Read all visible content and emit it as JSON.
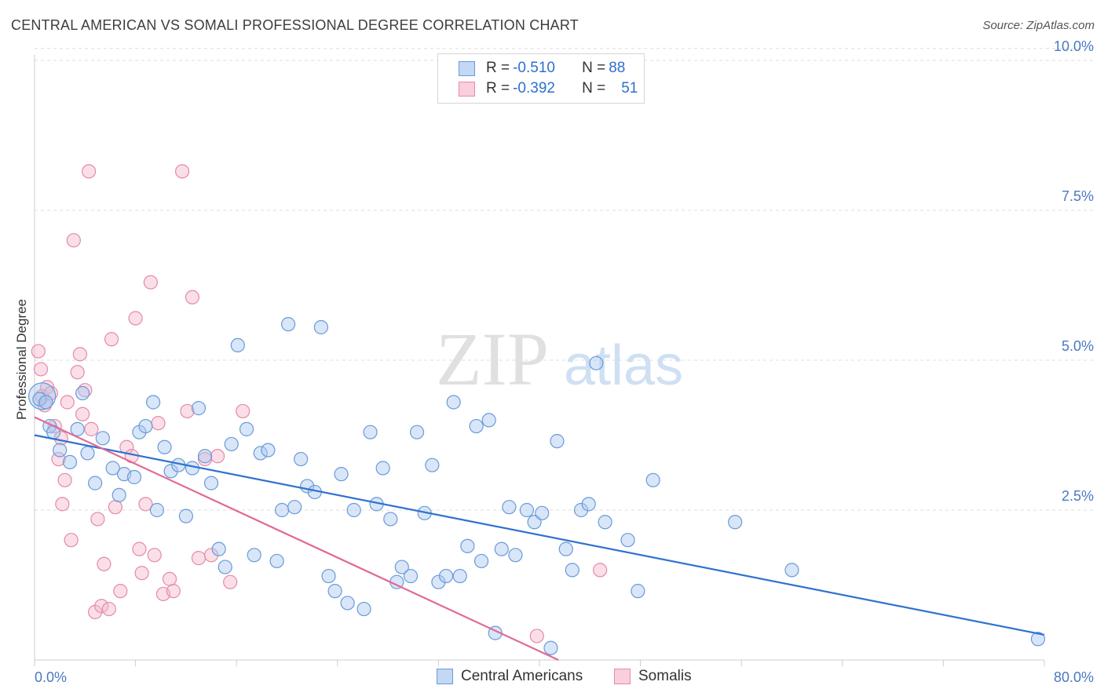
{
  "header": {
    "title": "CENTRAL AMERICAN VS SOMALI PROFESSIONAL DEGREE CORRELATION CHART",
    "source": "Source: ZipAtlas.com"
  },
  "watermark": {
    "zip": "ZIP",
    "atlas": "atlas"
  },
  "legend": {
    "rows": [
      {
        "r_label": "R = ",
        "r_value": "-0.510",
        "n_label": "N = ",
        "n_value": "88"
      },
      {
        "r_label": "R = ",
        "r_value": "-0.392",
        "n_label": "N = ",
        "n_value": "51"
      }
    ]
  },
  "colors": {
    "blue_fill": "#a9c8f0",
    "blue_stroke": "#6a9ad8",
    "blue_line": "#2f72d0",
    "pink_fill": "#f5b8cb",
    "pink_stroke": "#e58aa6",
    "pink_line": "#e06a95",
    "grid": "#dddddd",
    "axis": "#cccccc",
    "tick_text": "#4a78c2"
  },
  "chart_data": {
    "type": "scatter",
    "title": "CENTRAL AMERICAN VS SOMALI PROFESSIONAL DEGREE CORRELATION CHART",
    "xlabel": "",
    "ylabel": "Professional Degree",
    "xlim": [
      0,
      80
    ],
    "ylim": [
      0,
      10.5
    ],
    "x_tick_labels": [
      "0.0%",
      "80.0%"
    ],
    "y_ticks": [
      2.5,
      5.0,
      7.5,
      10.0
    ],
    "y_tick_labels": [
      "2.5%",
      "5.0%",
      "7.5%",
      "10.0%"
    ],
    "grid": "horizontal dashed",
    "legend_position": "top-center",
    "bottom_legend": [
      "Central Americans",
      "Somalis"
    ],
    "series": [
      {
        "name": "Central Americans",
        "color": "#a9c8f0",
        "r": -0.51,
        "n": 88,
        "trend": {
          "x0": 0,
          "y0": 3.75,
          "x1": 80,
          "y1": 0.42
        },
        "points": [
          [
            0.4,
            4.35
          ],
          [
            0.9,
            4.3
          ],
          [
            1.2,
            3.9
          ],
          [
            1.5,
            3.8
          ],
          [
            2.0,
            3.5
          ],
          [
            2.8,
            3.3
          ],
          [
            3.4,
            3.85
          ],
          [
            3.8,
            4.45
          ],
          [
            4.2,
            3.45
          ],
          [
            4.8,
            2.95
          ],
          [
            5.4,
            3.7
          ],
          [
            6.2,
            3.2
          ],
          [
            6.7,
            2.75
          ],
          [
            7.1,
            3.1
          ],
          [
            7.9,
            3.05
          ],
          [
            8.3,
            3.8
          ],
          [
            8.8,
            3.9
          ],
          [
            9.4,
            4.3
          ],
          [
            9.7,
            2.5
          ],
          [
            10.3,
            3.55
          ],
          [
            10.8,
            3.15
          ],
          [
            11.4,
            3.25
          ],
          [
            12.0,
            2.4
          ],
          [
            12.5,
            3.2
          ],
          [
            13.0,
            4.2
          ],
          [
            13.5,
            3.4
          ],
          [
            14.0,
            2.95
          ],
          [
            14.6,
            1.85
          ],
          [
            15.1,
            1.55
          ],
          [
            15.6,
            3.6
          ],
          [
            16.1,
            5.25
          ],
          [
            16.8,
            3.85
          ],
          [
            17.4,
            1.75
          ],
          [
            17.9,
            3.45
          ],
          [
            18.5,
            3.5
          ],
          [
            19.2,
            1.65
          ],
          [
            19.6,
            2.5
          ],
          [
            20.1,
            5.6
          ],
          [
            20.6,
            2.55
          ],
          [
            21.1,
            3.35
          ],
          [
            21.6,
            2.9
          ],
          [
            22.2,
            2.8
          ],
          [
            22.7,
            5.55
          ],
          [
            23.3,
            1.4
          ],
          [
            23.8,
            1.15
          ],
          [
            24.3,
            3.1
          ],
          [
            24.8,
            0.95
          ],
          [
            25.3,
            2.5
          ],
          [
            26.1,
            0.85
          ],
          [
            26.6,
            3.8
          ],
          [
            27.1,
            2.6
          ],
          [
            27.6,
            3.2
          ],
          [
            28.2,
            2.35
          ],
          [
            28.7,
            1.3
          ],
          [
            29.1,
            1.55
          ],
          [
            29.8,
            1.4
          ],
          [
            30.3,
            3.8
          ],
          [
            30.9,
            2.45
          ],
          [
            31.5,
            3.25
          ],
          [
            32.0,
            1.3
          ],
          [
            32.6,
            1.4
          ],
          [
            33.2,
            4.3
          ],
          [
            33.7,
            1.4
          ],
          [
            34.3,
            1.9
          ],
          [
            35.0,
            3.9
          ],
          [
            35.4,
            1.65
          ],
          [
            36.0,
            4.0
          ],
          [
            36.5,
            0.45
          ],
          [
            37.0,
            1.85
          ],
          [
            37.6,
            2.55
          ],
          [
            38.1,
            1.75
          ],
          [
            39.0,
            2.5
          ],
          [
            39.6,
            2.3
          ],
          [
            40.2,
            2.45
          ],
          [
            40.9,
            0.2
          ],
          [
            41.4,
            3.65
          ],
          [
            42.1,
            1.85
          ],
          [
            42.6,
            1.5
          ],
          [
            43.3,
            2.5
          ],
          [
            43.9,
            2.6
          ],
          [
            44.5,
            4.95
          ],
          [
            45.2,
            2.3
          ],
          [
            47.0,
            2.0
          ],
          [
            47.8,
            1.15
          ],
          [
            49.0,
            3.0
          ],
          [
            55.5,
            2.3
          ],
          [
            60.0,
            1.5
          ],
          [
            79.5,
            0.35
          ]
        ]
      },
      {
        "name": "Somalis",
        "color": "#f5b8cb",
        "r": -0.392,
        "n": 51,
        "trend": {
          "x0": 0,
          "y0": 4.05,
          "x1": 41.5,
          "y1": 0.0
        },
        "points": [
          [
            0.3,
            5.15
          ],
          [
            0.5,
            4.85
          ],
          [
            0.6,
            4.4
          ],
          [
            0.8,
            4.25
          ],
          [
            1.0,
            4.55
          ],
          [
            1.3,
            4.45
          ],
          [
            1.6,
            3.9
          ],
          [
            1.9,
            3.35
          ],
          [
            2.1,
            3.7
          ],
          [
            2.2,
            2.6
          ],
          [
            2.4,
            3.0
          ],
          [
            2.6,
            4.3
          ],
          [
            2.9,
            2.0
          ],
          [
            3.1,
            7.0
          ],
          [
            3.4,
            4.8
          ],
          [
            3.6,
            5.1
          ],
          [
            3.8,
            4.1
          ],
          [
            4.0,
            4.5
          ],
          [
            4.3,
            8.15
          ],
          [
            4.5,
            3.85
          ],
          [
            4.8,
            0.8
          ],
          [
            5.0,
            2.35
          ],
          [
            5.3,
            0.9
          ],
          [
            5.5,
            1.6
          ],
          [
            5.9,
            0.85
          ],
          [
            6.1,
            5.35
          ],
          [
            6.4,
            2.55
          ],
          [
            6.8,
            1.15
          ],
          [
            7.3,
            3.55
          ],
          [
            7.7,
            3.4
          ],
          [
            8.0,
            5.7
          ],
          [
            8.3,
            1.85
          ],
          [
            8.5,
            1.45
          ],
          [
            8.8,
            2.6
          ],
          [
            9.2,
            6.3
          ],
          [
            9.5,
            1.75
          ],
          [
            9.8,
            3.95
          ],
          [
            10.2,
            1.1
          ],
          [
            10.7,
            1.35
          ],
          [
            11.0,
            1.15
          ],
          [
            11.7,
            8.15
          ],
          [
            12.1,
            4.15
          ],
          [
            12.5,
            6.05
          ],
          [
            13.0,
            1.7
          ],
          [
            13.5,
            3.35
          ],
          [
            14.0,
            1.75
          ],
          [
            14.5,
            3.4
          ],
          [
            15.5,
            1.3
          ],
          [
            16.5,
            4.15
          ],
          [
            39.8,
            0.4
          ],
          [
            44.8,
            1.5
          ]
        ]
      }
    ]
  }
}
